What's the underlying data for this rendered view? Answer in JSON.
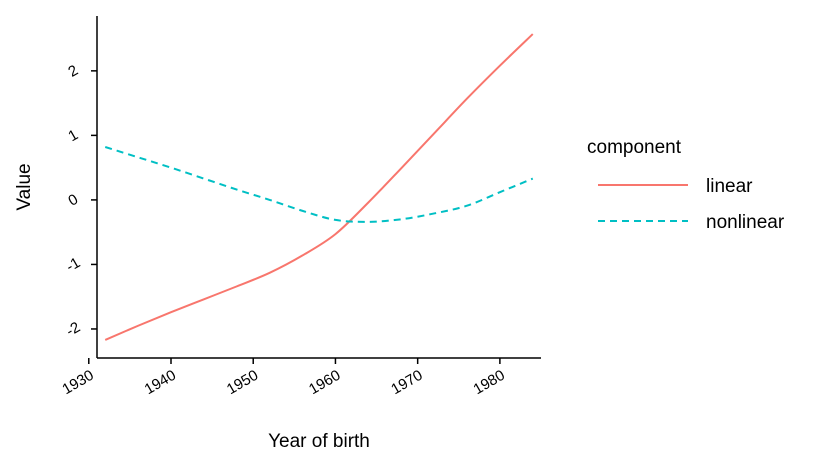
{
  "chart_data": {
    "type": "line",
    "xlabel": "Year of birth",
    "ylabel": "Value",
    "xlim": [
      1931,
      1985
    ],
    "ylim": [
      -2.45,
      2.85
    ],
    "xticks": [
      1930,
      1940,
      1950,
      1960,
      1970,
      1980
    ],
    "yticks": [
      -2,
      -1,
      0,
      1,
      2
    ],
    "grid": false,
    "legend": {
      "title": "component",
      "position": "right"
    },
    "series": [
      {
        "name": "linear",
        "color": "#F8766D",
        "dash": "solid",
        "x": [
          1932,
          1936,
          1940,
          1944,
          1948,
          1952,
          1956,
          1960,
          1964,
          1968,
          1972,
          1976,
          1980,
          1984
        ],
        "y": [
          -2.17,
          -1.95,
          -1.74,
          -1.54,
          -1.34,
          -1.13,
          -0.86,
          -0.53,
          -0.04,
          0.49,
          1.03,
          1.57,
          2.08,
          2.57
        ]
      },
      {
        "name": "nonlinear",
        "color": "#00BFC4",
        "dash": "dashed",
        "x": [
          1932,
          1936,
          1940,
          1944,
          1948,
          1952,
          1956,
          1960,
          1964,
          1968,
          1972,
          1976,
          1980,
          1984
        ],
        "y": [
          0.82,
          0.66,
          0.5,
          0.33,
          0.16,
          0.0,
          -0.17,
          -0.31,
          -0.34,
          -0.3,
          -0.21,
          -0.09,
          0.12,
          0.33
        ]
      }
    ]
  }
}
